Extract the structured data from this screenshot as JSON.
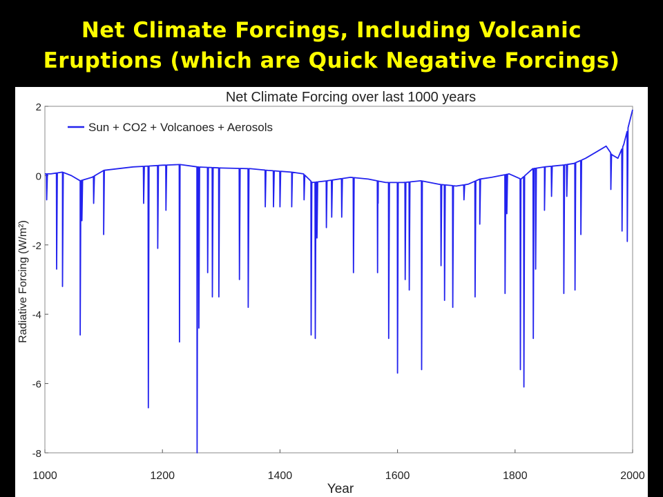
{
  "slide": {
    "title_line1": "Net Climate Forcings, Including Volcanic",
    "title_line2": "Eruptions (which are Quick Negative Forcings)"
  },
  "colors": {
    "background": "#000000",
    "title": "#FFFF00",
    "series": "#2222EE",
    "panel": "#FFFFFF"
  },
  "chart_data": {
    "type": "line",
    "title": "Net Climate Forcing over last 1000 years",
    "xlabel": "Year",
    "ylabel": "Radiative Forcing (W/m²)",
    "xlim": [
      1000,
      2000
    ],
    "ylim": [
      -8,
      2
    ],
    "xticks": [
      1000,
      1200,
      1400,
      1600,
      1800,
      2000
    ],
    "yticks": [
      -8,
      -6,
      -4,
      -2,
      0,
      2
    ],
    "grid": false,
    "legend": "top-left",
    "series": [
      {
        "name": "Sun + CO2 + Volcanoes + Aerosols",
        "color": "#2222EE",
        "baseline": [
          [
            1000,
            0.05
          ],
          [
            1010,
            0.05
          ],
          [
            1030,
            0.1
          ],
          [
            1045,
            0.0
          ],
          [
            1060,
            -0.15
          ],
          [
            1080,
            -0.05
          ],
          [
            1100,
            0.15
          ],
          [
            1150,
            0.25
          ],
          [
            1200,
            0.3
          ],
          [
            1230,
            0.32
          ],
          [
            1260,
            0.25
          ],
          [
            1300,
            0.22
          ],
          [
            1350,
            0.2
          ],
          [
            1380,
            0.15
          ],
          [
            1420,
            0.1
          ],
          [
            1440,
            0.05
          ],
          [
            1455,
            -0.2
          ],
          [
            1480,
            -0.15
          ],
          [
            1520,
            -0.05
          ],
          [
            1550,
            -0.1
          ],
          [
            1580,
            -0.2
          ],
          [
            1610,
            -0.2
          ],
          [
            1640,
            -0.15
          ],
          [
            1670,
            -0.25
          ],
          [
            1700,
            -0.3
          ],
          [
            1720,
            -0.25
          ],
          [
            1740,
            -0.1
          ],
          [
            1760,
            -0.05
          ],
          [
            1790,
            0.05
          ],
          [
            1810,
            -0.1
          ],
          [
            1830,
            0.2
          ],
          [
            1850,
            0.25
          ],
          [
            1880,
            0.3
          ],
          [
            1900,
            0.35
          ],
          [
            1920,
            0.5
          ],
          [
            1940,
            0.7
          ],
          [
            1955,
            0.85
          ],
          [
            1965,
            0.6
          ],
          [
            1975,
            0.5
          ],
          [
            1985,
            0.9
          ],
          [
            2000,
            1.9
          ]
        ],
        "volcanic_spikes": [
          [
            1003,
            -0.7
          ],
          [
            1020,
            -2.7
          ],
          [
            1030,
            -3.2
          ],
          [
            1060,
            -4.6
          ],
          [
            1063,
            -1.3
          ],
          [
            1083,
            -0.8
          ],
          [
            1100,
            -1.7
          ],
          [
            1168,
            -0.8
          ],
          [
            1176,
            -6.7
          ],
          [
            1192,
            -2.1
          ],
          [
            1206,
            -1.0
          ],
          [
            1229,
            -4.8
          ],
          [
            1259,
            -8.0
          ],
          [
            1262,
            -4.4
          ],
          [
            1277,
            -2.8
          ],
          [
            1285,
            -3.5
          ],
          [
            1296,
            -3.5
          ],
          [
            1331,
            -3.0
          ],
          [
            1346,
            -3.8
          ],
          [
            1375,
            -0.9
          ],
          [
            1389,
            -0.9
          ],
          [
            1400,
            -0.9
          ],
          [
            1420,
            -0.9
          ],
          [
            1441,
            -0.7
          ],
          [
            1453,
            -4.6
          ],
          [
            1460,
            -4.7
          ],
          [
            1463,
            -1.8
          ],
          [
            1479,
            -1.5
          ],
          [
            1488,
            -1.2
          ],
          [
            1505,
            -1.2
          ],
          [
            1525,
            -2.8
          ],
          [
            1566,
            -2.8
          ],
          [
            1567,
            -0.8
          ],
          [
            1585,
            -4.7
          ],
          [
            1600,
            -5.7
          ],
          [
            1613,
            -3.0
          ],
          [
            1620,
            -3.3
          ],
          [
            1641,
            -5.6
          ],
          [
            1674,
            -2.6
          ],
          [
            1680,
            -3.6
          ],
          [
            1694,
            -3.8
          ],
          [
            1713,
            -0.7
          ],
          [
            1732,
            -3.5
          ],
          [
            1740,
            -1.4
          ],
          [
            1783,
            -3.4
          ],
          [
            1786,
            -1.1
          ],
          [
            1809,
            -5.6
          ],
          [
            1815,
            -6.1
          ],
          [
            1831,
            -4.7
          ],
          [
            1835,
            -2.7
          ],
          [
            1850,
            -1.0
          ],
          [
            1862,
            -0.6
          ],
          [
            1883,
            -3.4
          ],
          [
            1888,
            -0.6
          ],
          [
            1902,
            -3.3
          ],
          [
            1912,
            -1.7
          ],
          [
            1963,
            -0.4
          ],
          [
            1982,
            -1.6
          ],
          [
            1991,
            -1.9
          ]
        ]
      }
    ]
  }
}
